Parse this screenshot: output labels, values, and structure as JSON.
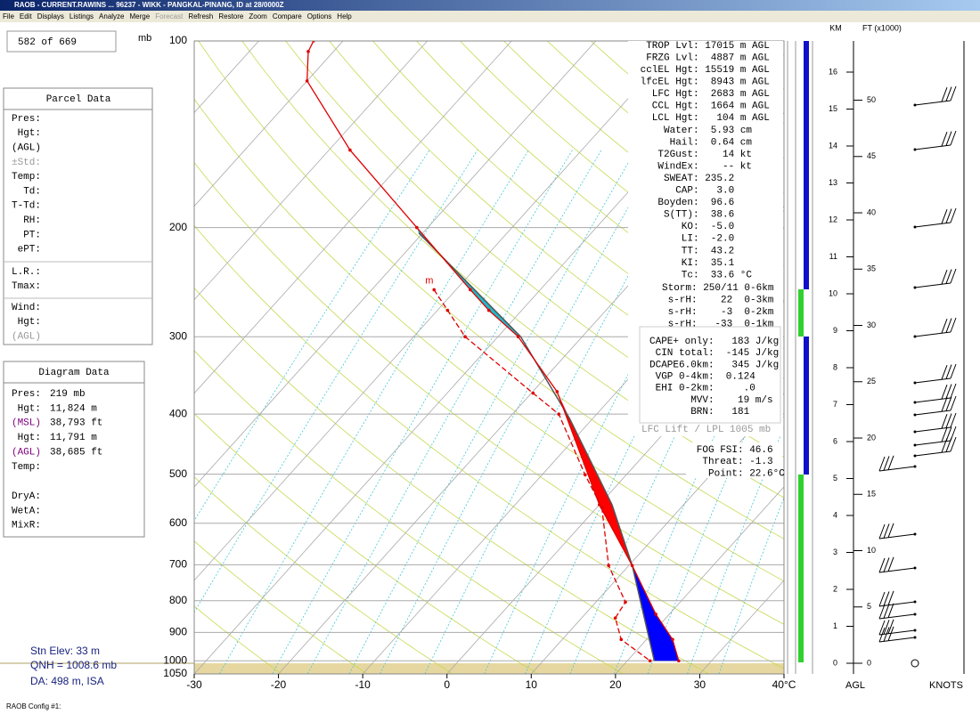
{
  "title_bar": "RAOB - CURRENT.RAWINS  ...  96237 - WIKK - PANGKAL-PINANG, ID   at 28/0000Z",
  "menu": [
    "File",
    "Edit",
    "Displays",
    "Listings",
    "Analyze",
    "Merge",
    "Forecast",
    "Refresh",
    "Restore",
    "Zoom",
    "Compare",
    "Options",
    "Help"
  ],
  "left_panel": {
    "counter": "582 of 669",
    "unit": "mb",
    "parcel_data": {
      "title": "Parcel Data",
      "rows": [
        "Pres:",
        "Hgt:",
        "(AGL)",
        "±Std:",
        "Temp:",
        "Td:",
        "T-Td:",
        "RH:",
        "PT:",
        "ePT:"
      ],
      "rows2": [
        "L.R.:",
        "Tmax:"
      ],
      "rows3": [
        "Wind:",
        "Hgt:",
        "(AGL)"
      ]
    },
    "diagram_data": {
      "title": "Diagram Data",
      "rows": [
        {
          "label": "Pres:",
          "value": "219 mb"
        },
        {
          "label": "Hgt:",
          "value": "11,824 m"
        },
        {
          "label": "(MSL)",
          "value": "38,793 ft"
        },
        {
          "label": "Hgt:",
          "value": "11,791 m"
        },
        {
          "label": "(AGL)",
          "value": "38,685 ft"
        },
        {
          "label": "Temp:",
          "value": ""
        }
      ],
      "rows2": [
        "DryA:",
        "WetA:",
        "MixR:"
      ]
    },
    "station": [
      "Stn Elev: 33 m",
      "QNH = 1008.6 mb",
      "DA: 498 m, ISA"
    ]
  },
  "diagram": {
    "plim": [
      100,
      1050
    ],
    "tlim": [
      -30,
      40
    ],
    "pressure_ticks": [
      100,
      200,
      300,
      400,
      500,
      600,
      700,
      800,
      900,
      1000,
      1050
    ],
    "temp_ticks": [
      -30,
      -20,
      -10,
      0,
      10,
      20,
      30,
      {
        "value": 40,
        "label": "40°C"
      }
    ],
    "temperature": {
      "pressure": [
        100,
        104,
        116,
        150,
        200,
        252,
        272,
        300,
        368,
        560,
        702,
        841,
        924,
        1000
      ],
      "values": [
        -83.5,
        -83.0,
        -80.0,
        -67.5,
        -51.3,
        -38.3,
        -33.9,
        -27.6,
        -17.1,
        0.0,
        10.4,
        18.4,
        23.1,
        26.1
      ]
    },
    "dewpoint": {
      "label": "m",
      "pressure": [
        252,
        272,
        300,
        370,
        400,
        501,
        566,
        702,
        804,
        853,
        924,
        1000
      ],
      "values": [
        -42.6,
        -38.8,
        -33.9,
        -19.8,
        -14.5,
        -4.9,
        0.6,
        7.6,
        13.5,
        14.0,
        17.0,
        22.7
      ]
    },
    "parcel": {
      "pressure": [
        1000,
        702,
        560,
        407,
        300,
        204
      ],
      "values": [
        23.2,
        10.4,
        1.5,
        -12.7,
        -27.3,
        -50.5
      ]
    }
  },
  "indices": [
    {
      "lines": [
        "TROP Lvl: 17015 m AGL",
        "FRZG Lvl:  4887 m AGL",
        "cclEL Hgt: 15519 m AGL",
        "lfcEL Hgt:  8943 m AGL",
        "LFC Hgt:  2683 m AGL",
        "CCL Hgt:  1664 m AGL",
        "LCL Hgt:   104 m AGL",
        "Water:  5.93 cm",
        "Hail:  0.64 cm",
        "T2Gust:    14 kt",
        "WindEx:    -- kt",
        "SWEAT: 235.2",
        "CAP:   3.0",
        "Boyden:  96.6",
        "S(TT):  38.6",
        "KO:  -5.0",
        "LI:  -2.0",
        "TT:  43.2",
        "KI:  35.1",
        "Tc:  33.6 °C"
      ]
    },
    {
      "lines": [
        "Storm: 250/11 0-6km",
        "s-rH:    22  0-3km",
        "s-rH:    -3  0-2km",
        "s-rH:   -33  0-1km"
      ]
    },
    {
      "lines": [
        "CAPE+ only:   183 J/kg",
        "CIN total:  -145 J/kg",
        "DCAPE6.0km:   345 J/kg",
        "VGP 0-4km:  0.124",
        "EHI 0-2km:     .0",
        "MVV:    19 m/s",
        "BRN:   181"
      ]
    },
    {
      "lines": [
        "FOG FSI: 46.6",
        "Threat: -1.3",
        "Point: 22.6°C"
      ]
    }
  ],
  "lift_note": "LFC Lift / LPL 1005 mb",
  "height_axis": {
    "km_title": "KM",
    "ft_title": "FT (x1000)",
    "km_ticks": [
      0,
      1,
      2,
      3,
      4,
      5,
      6,
      7,
      8,
      9,
      10,
      11,
      12,
      13,
      14,
      15,
      16
    ],
    "ft_ticks": [
      0,
      5,
      10,
      15,
      20,
      25,
      30,
      35,
      40,
      45,
      50
    ],
    "bottom_left": "AGL",
    "bottom_right": "KNOTS"
  },
  "status": "RAOB Config #1:"
}
